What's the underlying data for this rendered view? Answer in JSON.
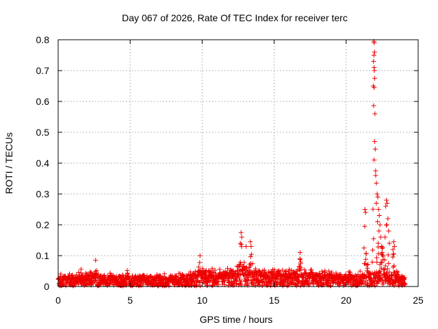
{
  "chart_data": {
    "type": "scatter",
    "title": "Day 067 of 2026, Rate Of TEC Index for receiver terc",
    "xlabel": "GPS time / hours",
    "ylabel": "ROTI / TECUs",
    "xlim": [
      0,
      25
    ],
    "ylim": [
      0,
      0.8
    ],
    "xticks": [
      0,
      5,
      10,
      15,
      20,
      25
    ],
    "yticks": [
      0,
      0.1,
      0.2,
      0.3,
      0.4,
      0.5,
      0.6,
      0.7,
      0.8
    ],
    "xtick_labels": [
      "0",
      "5",
      "10",
      "15",
      "20",
      "25"
    ],
    "ytick_labels": [
      "0",
      "0.1",
      "0.2",
      "0.3",
      "0.4",
      "0.5",
      "0.6",
      "0.7",
      "0.8"
    ],
    "grid": true,
    "marker": "+",
    "color": "#ee0000",
    "series": [
      {
        "name": "ROTI",
        "baseline_profile": {
          "x": [
            0,
            1,
            2,
            3,
            4,
            5,
            6,
            7,
            8,
            9,
            10,
            11,
            12,
            13,
            14,
            15,
            16,
            17,
            18,
            19,
            20,
            21,
            22,
            23,
            24
          ],
          "y": [
            0.03,
            0.03,
            0.035,
            0.03,
            0.03,
            0.03,
            0.03,
            0.03,
            0.03,
            0.035,
            0.045,
            0.04,
            0.045,
            0.05,
            0.045,
            0.04,
            0.04,
            0.04,
            0.035,
            0.035,
            0.03,
            0.035,
            0.04,
            0.04,
            0.03
          ]
        },
        "peaks": [
          {
            "x": 0.5,
            "y": 0.045
          },
          {
            "x": 1.6,
            "y": 0.07
          },
          {
            "x": 2.6,
            "y": 0.085
          },
          {
            "x": 3.6,
            "y": 0.06
          },
          {
            "x": 4.8,
            "y": 0.065
          },
          {
            "x": 5.9,
            "y": 0.05
          },
          {
            "x": 6.8,
            "y": 0.055
          },
          {
            "x": 7.8,
            "y": 0.05
          },
          {
            "x": 8.6,
            "y": 0.06
          },
          {
            "x": 9.8,
            "y": 0.1
          },
          {
            "x": 10.4,
            "y": 0.075
          },
          {
            "x": 11.2,
            "y": 0.065
          },
          {
            "x": 11.8,
            "y": 0.08
          },
          {
            "x": 12.7,
            "y": 0.175
          },
          {
            "x": 13.0,
            "y": 0.13
          },
          {
            "x": 13.4,
            "y": 0.145
          },
          {
            "x": 14.4,
            "y": 0.09
          },
          {
            "x": 15.3,
            "y": 0.07
          },
          {
            "x": 16.0,
            "y": 0.065
          },
          {
            "x": 16.8,
            "y": 0.11
          },
          {
            "x": 17.6,
            "y": 0.08
          },
          {
            "x": 18.5,
            "y": 0.065
          },
          {
            "x": 19.3,
            "y": 0.055
          },
          {
            "x": 20.2,
            "y": 0.075
          },
          {
            "x": 21.3,
            "y": 0.25
          },
          {
            "x": 21.5,
            "y": 0.1
          },
          {
            "x": 21.95,
            "y": 0.8
          },
          {
            "x": 22.2,
            "y": 0.3
          },
          {
            "x": 22.5,
            "y": 0.17
          },
          {
            "x": 22.8,
            "y": 0.28
          },
          {
            "x": 23.3,
            "y": 0.145
          },
          {
            "x": 23.9,
            "y": 0.05
          }
        ],
        "outliers": [
          {
            "x": 21.92,
            "y": 0.795
          },
          {
            "x": 21.95,
            "y": 0.79
          },
          {
            "x": 21.97,
            "y": 0.76
          },
          {
            "x": 21.93,
            "y": 0.75
          },
          {
            "x": 21.9,
            "y": 0.73
          },
          {
            "x": 21.94,
            "y": 0.71
          },
          {
            "x": 21.96,
            "y": 0.7
          },
          {
            "x": 21.98,
            "y": 0.675
          },
          {
            "x": 21.88,
            "y": 0.65
          },
          {
            "x": 21.95,
            "y": 0.645
          },
          {
            "x": 22.0,
            "y": 0.56
          },
          {
            "x": 21.98,
            "y": 0.47
          },
          {
            "x": 22.05,
            "y": 0.36
          },
          {
            "x": 22.1,
            "y": 0.335
          },
          {
            "x": 22.15,
            "y": 0.3
          },
          {
            "x": 22.2,
            "y": 0.29
          },
          {
            "x": 22.1,
            "y": 0.27
          },
          {
            "x": 22.25,
            "y": 0.25
          },
          {
            "x": 22.3,
            "y": 0.23
          },
          {
            "x": 22.18,
            "y": 0.21
          },
          {
            "x": 22.35,
            "y": 0.2
          },
          {
            "x": 22.28,
            "y": 0.18
          },
          {
            "x": 22.4,
            "y": 0.16
          },
          {
            "x": 22.22,
            "y": 0.14
          },
          {
            "x": 22.45,
            "y": 0.13
          },
          {
            "x": 22.5,
            "y": 0.11
          },
          {
            "x": 21.3,
            "y": 0.25
          },
          {
            "x": 21.35,
            "y": 0.24
          },
          {
            "x": 22.8,
            "y": 0.28
          },
          {
            "x": 22.85,
            "y": 0.27
          },
          {
            "x": 22.75,
            "y": 0.26
          },
          {
            "x": 22.9,
            "y": 0.22
          },
          {
            "x": 22.82,
            "y": 0.2
          },
          {
            "x": 22.95,
            "y": 0.18
          },
          {
            "x": 22.7,
            "y": 0.16
          },
          {
            "x": 23.0,
            "y": 0.14
          },
          {
            "x": 23.3,
            "y": 0.145
          },
          {
            "x": 23.35,
            "y": 0.13
          },
          {
            "x": 23.25,
            "y": 0.12
          },
          {
            "x": 12.7,
            "y": 0.175
          },
          {
            "x": 12.75,
            "y": 0.16
          },
          {
            "x": 12.65,
            "y": 0.14
          },
          {
            "x": 13.35,
            "y": 0.145
          },
          {
            "x": 13.4,
            "y": 0.13
          },
          {
            "x": 13.05,
            "y": 0.13
          },
          {
            "x": 16.8,
            "y": 0.11
          },
          {
            "x": 9.85,
            "y": 0.1
          },
          {
            "x": 2.6,
            "y": 0.085
          }
        ]
      }
    ]
  }
}
